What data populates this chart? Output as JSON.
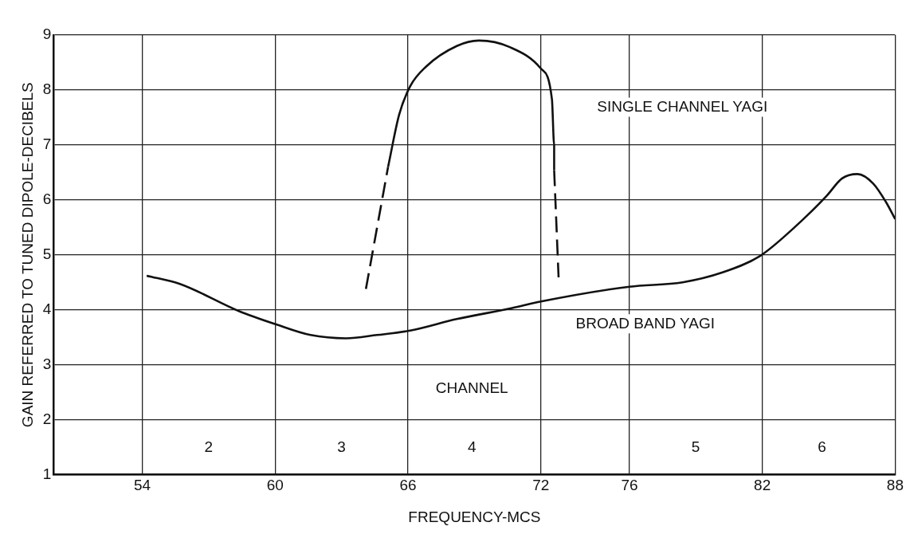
{
  "chart_data": {
    "type": "line",
    "xlabel": "FREQUENCY-MCS",
    "ylabel": "GAIN REFERRED TO TUNED DIPOLE-DECIBELS",
    "xlim": [
      50,
      88
    ],
    "xticks": [
      54,
      60,
      66,
      72,
      76,
      82,
      88
    ],
    "ylim": [
      1,
      9
    ],
    "yticks": [
      1,
      2,
      3,
      4,
      5,
      6,
      7,
      8,
      9
    ],
    "grid": true,
    "legend": false,
    "marker": "none",
    "series": [
      {
        "color": "#111111",
        "line_style": "solid",
        "x": [
          54.2,
          55.7,
          58.4,
          60,
          61.6,
          63.2,
          64.6,
          66.1,
          68.2,
          70.7,
          72,
          76,
          78.4,
          80.2,
          81.9,
          83.4,
          84.9,
          85.6,
          86.3,
          87,
          87.6,
          88
        ],
        "values": [
          4.62,
          4.47,
          3.97,
          3.74,
          3.54,
          3.48,
          3.54,
          3.62,
          3.83,
          4.03,
          4.15,
          4.42,
          4.5,
          4.68,
          4.98,
          5.48,
          6.07,
          6.39,
          6.47,
          6.3,
          5.95,
          5.65
        ]
      },
      {
        "color": "#111111",
        "line_style": "dashed",
        "x": [
          64.1,
          65.1
        ],
        "values": [
          4.38,
          6.6
        ]
      },
      {
        "color": "#111111",
        "line_style": "solid",
        "x": [
          65.1,
          65.6,
          66.1,
          66.8,
          68.2,
          69.2,
          70.6,
          72,
          72.5,
          72.6,
          72.6
        ],
        "values": [
          6.6,
          7.55,
          8.07,
          8.42,
          8.8,
          8.9,
          8.78,
          8.39,
          7.83,
          7,
          6.54
        ]
      },
      {
        "color": "#111111",
        "line_style": "dashed",
        "x": [
          72.6,
          72.8
        ],
        "values": [
          6.54,
          4.59
        ]
      }
    ],
    "annotations": [
      "SINGLE CHANNEL YAGI",
      "BROAD BAND YAGI",
      "CHANNEL",
      "2",
      "3",
      "4",
      "5",
      "6"
    ]
  }
}
